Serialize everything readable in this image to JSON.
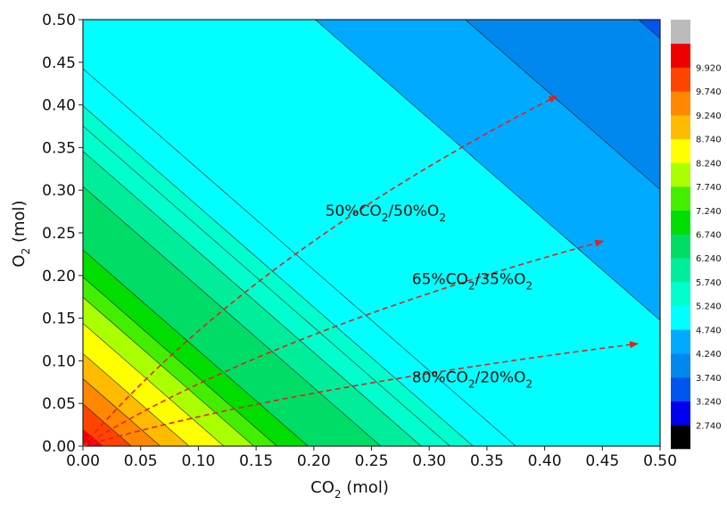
{
  "chart_data": {
    "type": "heatmap",
    "subtype": "filled-contour",
    "title": "",
    "xlabel": {
      "main": "CO",
      "sub": "2",
      "unit": " (mol)"
    },
    "ylabel": {
      "main": "O",
      "sub": "2",
      "unit": " (mol)"
    },
    "xlim": [
      0,
      0.5
    ],
    "ylim": [
      0,
      0.5
    ],
    "x_ticks": [
      "0.00",
      "0.05",
      "0.10",
      "0.15",
      "0.20",
      "0.25",
      "0.30",
      "0.35",
      "0.40",
      "0.45",
      "0.50"
    ],
    "y_ticks": [
      "0.00",
      "0.05",
      "0.10",
      "0.15",
      "0.20",
      "0.25",
      "0.30",
      "0.35",
      "0.40",
      "0.45",
      "0.50"
    ],
    "grid": false,
    "colorbar": {
      "placement": "right",
      "levels": [
        "2.740",
        "3.240",
        "3.740",
        "4.240",
        "4.740",
        "5.240",
        "5.740",
        "6.240",
        "6.740",
        "7.240",
        "7.740",
        "8.240",
        "8.740",
        "9.240",
        "9.740",
        "9.920"
      ],
      "colors": [
        "#000000",
        "#0000ee",
        "#0055ee",
        "#0088ee",
        "#00aaff",
        "#00ffff",
        "#00ffcc",
        "#00ee99",
        "#00dd66",
        "#00dd00",
        "#44ee00",
        "#aaff00",
        "#ffff00",
        "#ffbb00",
        "#ff8800",
        "#ff4400",
        "#ee0000",
        "#bbbbbb"
      ]
    },
    "contour_bands": [
      {
        "level_on_x_axis": 0.042,
        "color": "#ff4400"
      },
      {
        "level_on_x_axis": 0.067,
        "color": "#ff8800"
      },
      {
        "level_on_x_axis": 0.092,
        "color": "#ffbb00"
      },
      {
        "level_on_x_axis": 0.122,
        "color": "#ffff00"
      },
      {
        "level_on_x_axis": 0.148,
        "color": "#aaff00"
      },
      {
        "level_on_x_axis": 0.168,
        "color": "#44ee00"
      },
      {
        "level_on_x_axis": 0.195,
        "color": "#00dd00"
      },
      {
        "level_on_x_axis": 0.258,
        "color": "#00dd66"
      },
      {
        "level_on_x_axis": 0.293,
        "color": "#00ee99"
      },
      {
        "level_on_x_axis": 0.318,
        "color": "#00ffcc"
      },
      {
        "level_on_x_axis": 0.338,
        "color": "#00ffcc"
      },
      {
        "level_on_x_axis": 0.375,
        "color": "#00ffff"
      },
      {
        "level_on_x_axis": 0.625,
        "color": "#00ffff"
      },
      {
        "level_on_x_axis": 0.755,
        "color": "#00aaff"
      },
      {
        "level_on_x_axis": 0.905,
        "color": "#0088ee"
      },
      {
        "level_on_x_axis": 1.05,
        "color": "#0055ee"
      },
      {
        "level_on_x_axis": 5.0,
        "color": "#0000ee"
      }
    ],
    "contour_slope": -1.18,
    "corner_color": "#ee0000",
    "arrows": [
      {
        "from": [
          0.0,
          0.0
        ],
        "to": [
          0.41,
          0.41
        ],
        "label": {
          "a": "50%CO",
          "s1": "2",
          "b": "/50%O",
          "s2": "2"
        },
        "label_at": [
          0.21,
          0.27
        ]
      },
      {
        "from": [
          0.0,
          0.0
        ],
        "to": [
          0.45,
          0.24
        ],
        "label": {
          "a": "65%CO",
          "s1": "2",
          "b": "/35%O",
          "s2": "2"
        },
        "label_at": [
          0.285,
          0.19
        ]
      },
      {
        "from": [
          0.0,
          0.0
        ],
        "to": [
          0.48,
          0.12
        ],
        "label": {
          "a": "80%CO",
          "s1": "2",
          "b": "/20%O",
          "s2": "2"
        },
        "label_at": [
          0.285,
          0.075
        ]
      }
    ]
  }
}
